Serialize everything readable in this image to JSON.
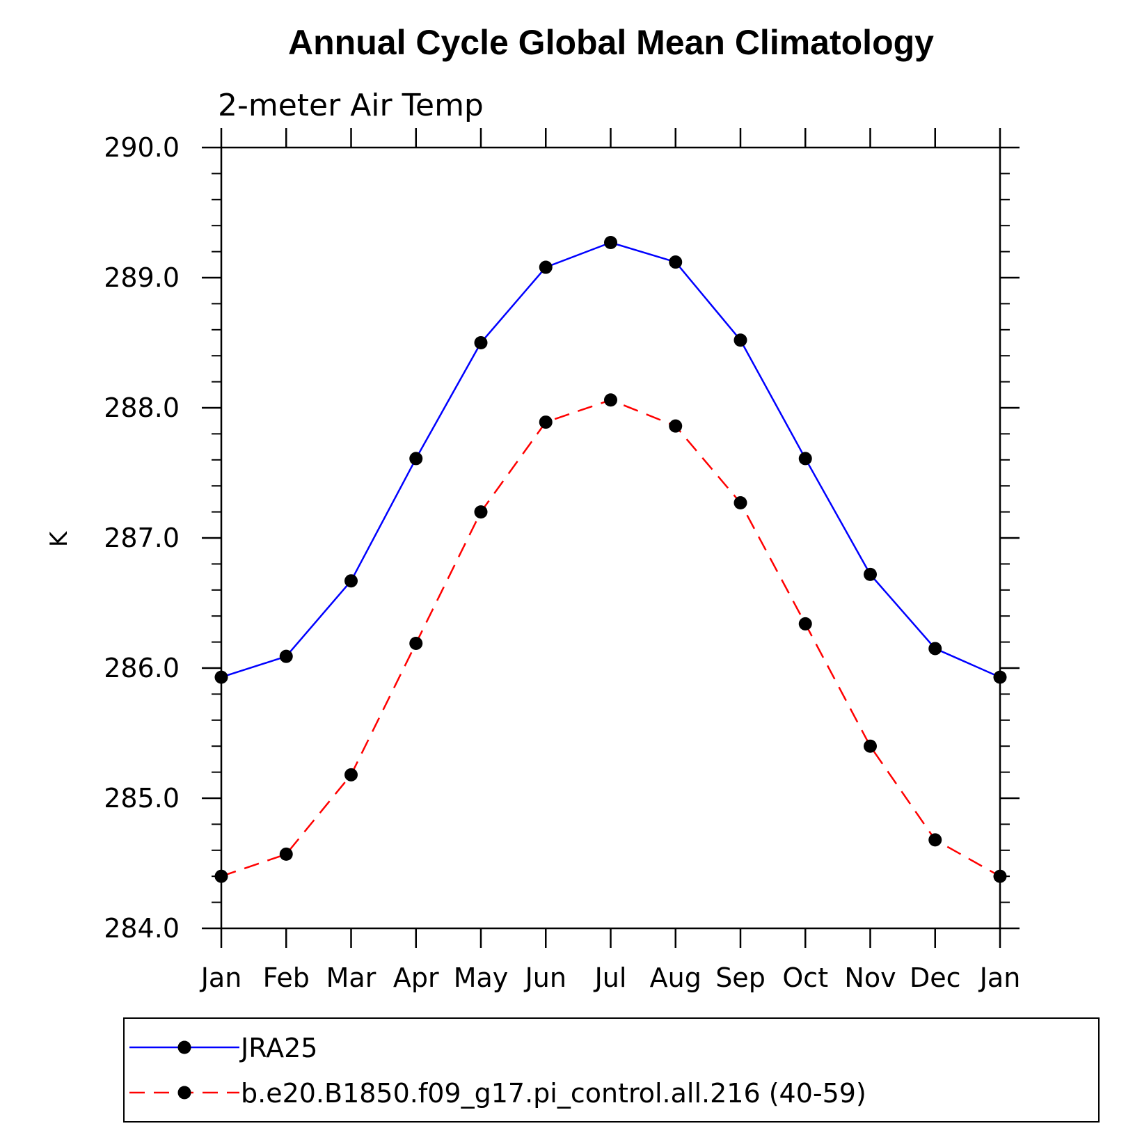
{
  "chart_data": {
    "type": "line",
    "title": "Annual Cycle Global Mean Climatology",
    "subtitle": "2-meter Air Temp",
    "xlabel": "",
    "ylabel": "K",
    "categories": [
      "Jan",
      "Feb",
      "Mar",
      "Apr",
      "May",
      "Jun",
      "Jul",
      "Aug",
      "Sep",
      "Oct",
      "Nov",
      "Dec",
      "Jan"
    ],
    "ylim": [
      284.0,
      290.0
    ],
    "yticks": [
      284.0,
      285.0,
      286.0,
      287.0,
      288.0,
      289.0,
      290.0
    ],
    "ytick_labels": [
      "284.0",
      "285.0",
      "286.0",
      "287.0",
      "288.0",
      "289.0",
      "290.0"
    ],
    "grid": false,
    "legend_position": "bottom",
    "series": [
      {
        "name": "JRA25",
        "color": "#0000ff",
        "line_style": "solid",
        "marker": "filled-circle",
        "values": [
          285.93,
          286.09,
          286.67,
          287.61,
          288.5,
          289.08,
          289.27,
          289.12,
          288.52,
          287.61,
          286.72,
          286.15,
          285.93
        ]
      },
      {
        "name": "b.e20.B1850.f09_g17.pi_control.all.216 (40-59)",
        "color": "#ff0000",
        "line_style": "dashed",
        "marker": "filled-circle",
        "values": [
          284.4,
          284.57,
          285.18,
          286.19,
          287.2,
          287.89,
          288.06,
          287.86,
          287.27,
          286.34,
          285.4,
          284.68,
          284.4
        ]
      }
    ]
  }
}
